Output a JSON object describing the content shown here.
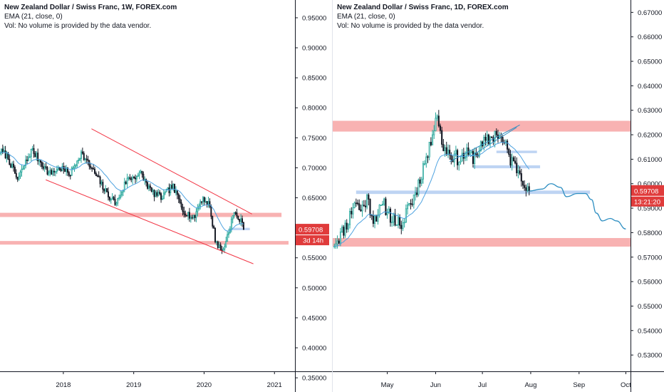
{
  "panels": {
    "left": {
      "title": "New Zealand Dollar / Swiss Franc, 1W, FOREX.com",
      "indicator": "EMA (21, close, 0)",
      "volume_note": "Vol: No volume is provided by the data vendor.",
      "price_badge": "0.59708",
      "countdown_badge": "3d 14h"
    },
    "right": {
      "title": "New Zealand Dollar / Swiss Franc, 1D, FOREX.com",
      "indicator": "EMA (21, close, 0)",
      "volume_note": "Vol: No volume is provided by the data vendor.",
      "price_badge": "0.59708",
      "countdown_badge": "13:21:20"
    }
  },
  "colors": {
    "up": "#26a69a",
    "down": "#131722",
    "ema": "#4fa3e0",
    "zone_red": "#f7a5a5",
    "zone_blue": "#b7cff2",
    "channel": "#f23645",
    "badge": "#e03b3b",
    "projection": "#2f8fc2"
  },
  "chart_data": [
    {
      "type": "candlestick",
      "title": "New Zealand Dollar / Swiss Franc, 1W, FOREX.com",
      "x_ticks": [
        "2018",
        "2019",
        "2020",
        "2021"
      ],
      "x_tick_values": [
        2018.0,
        2019.0,
        2020.0,
        2021.0
      ],
      "xlim": [
        2017.1,
        2021.2
      ],
      "y_ticks": [
        "0.95000",
        "0.90000",
        "0.85000",
        "0.80000",
        "0.75000",
        "0.70000",
        "0.65000",
        "0.60000",
        "0.55000",
        "0.50000",
        "0.45000",
        "0.40000",
        "0.35000"
      ],
      "ylim": [
        0.343,
        0.963
      ],
      "last_price": 0.59708,
      "ema_period": 21,
      "anchors": [
        [
          2017.1,
          0.728
        ],
        [
          2017.2,
          0.72
        ],
        [
          2017.35,
          0.68
        ],
        [
          2017.55,
          0.73
        ],
        [
          2017.8,
          0.69
        ],
        [
          2017.95,
          0.7
        ],
        [
          2018.1,
          0.69
        ],
        [
          2018.25,
          0.725
        ],
        [
          2018.45,
          0.69
        ],
        [
          2018.6,
          0.66
        ],
        [
          2018.75,
          0.64
        ],
        [
          2018.9,
          0.68
        ],
        [
          2019.1,
          0.69
        ],
        [
          2019.25,
          0.66
        ],
        [
          2019.4,
          0.65
        ],
        [
          2019.55,
          0.67
        ],
        [
          2019.7,
          0.63
        ],
        [
          2019.85,
          0.615
        ],
        [
          2019.97,
          0.65
        ],
        [
          2020.07,
          0.64
        ],
        [
          2020.16,
          0.58
        ],
        [
          2020.2,
          0.57
        ],
        [
          2020.26,
          0.56
        ],
        [
          2020.34,
          0.59
        ],
        [
          2020.42,
          0.625
        ],
        [
          2020.5,
          0.615
        ],
        [
          2020.58,
          0.597
        ]
      ],
      "zones": [
        {
          "color": "red",
          "x1": 2017.1,
          "x2": 2021.1,
          "y1": 0.625,
          "y2": 0.618
        },
        {
          "color": "red",
          "x1": 2017.1,
          "x2": 2021.2,
          "y1": 0.578,
          "y2": 0.572
        },
        {
          "color": "blue",
          "x1": 2020.35,
          "x2": 2020.65,
          "y1": 0.6,
          "y2": 0.596
        }
      ],
      "channel_lines": [
        {
          "x1": 2018.4,
          "y1": 0.765,
          "x2": 2020.68,
          "y2": 0.623
        },
        {
          "x1": 2017.75,
          "y1": 0.68,
          "x2": 2020.7,
          "y2": 0.54
        }
      ]
    },
    {
      "type": "candlestick",
      "title": "New Zealand Dollar / Swiss Franc, 1D, FOREX.com",
      "x_ticks": [
        "May",
        "Jun",
        "Jul",
        "Aug",
        "Sep",
        "Oct"
      ],
      "x_tick_values": [
        35,
        66,
        96,
        127,
        158,
        188
      ],
      "xlim": [
        0,
        191
      ],
      "y_ticks": [
        "0.67000",
        "0.66000",
        "0.65000",
        "0.64000",
        "0.63000",
        "0.62000",
        "0.61000",
        "0.60000",
        "0.59000",
        "0.58000",
        "0.57000",
        "0.56000",
        "0.55000",
        "0.54000",
        "0.53000"
      ],
      "ylim": [
        0.5213,
        0.6736
      ],
      "last_price": 0.59708,
      "ema_period": 21,
      "anchors": [
        [
          1,
          0.576
        ],
        [
          5,
          0.579
        ],
        [
          10,
          0.585
        ],
        [
          14,
          0.593
        ],
        [
          18,
          0.589
        ],
        [
          22,
          0.594
        ],
        [
          26,
          0.586
        ],
        [
          29,
          0.588
        ],
        [
          33,
          0.591
        ],
        [
          38,
          0.586
        ],
        [
          42,
          0.584
        ],
        [
          44,
          0.579
        ],
        [
          47,
          0.59
        ],
        [
          51,
          0.593
        ],
        [
          55,
          0.6
        ],
        [
          58,
          0.607
        ],
        [
          62,
          0.614
        ],
        [
          64,
          0.622
        ],
        [
          67,
          0.629
        ],
        [
          70,
          0.616
        ],
        [
          74,
          0.613
        ],
        [
          78,
          0.611
        ],
        [
          82,
          0.61
        ],
        [
          85,
          0.612
        ],
        [
          90,
          0.611
        ],
        [
          94,
          0.614
        ],
        [
          98,
          0.617
        ],
        [
          102,
          0.619
        ],
        [
          105,
          0.621
        ],
        [
          108,
          0.618
        ],
        [
          111,
          0.615
        ],
        [
          114,
          0.61
        ],
        [
          117,
          0.607
        ],
        [
          120,
          0.605
        ],
        [
          123,
          0.601
        ],
        [
          126,
          0.597
        ]
      ],
      "zones": [
        {
          "color": "red",
          "x1": 0,
          "x2": 191,
          "y1": 0.6257,
          "y2": 0.6213
        },
        {
          "color": "red",
          "x1": 0,
          "x2": 191,
          "y1": 0.5778,
          "y2": 0.5743
        },
        {
          "color": "blue",
          "x1": 15,
          "x2": 165,
          "y1": 0.5972,
          "y2": 0.5958
        },
        {
          "color": "blue",
          "x1": 90,
          "x2": 133,
          "y1": 0.6075,
          "y2": 0.6063
        },
        {
          "color": "blue",
          "x1": 105,
          "x2": 131,
          "y1": 0.6135,
          "y2": 0.6125
        }
      ],
      "pattern_lines": [
        {
          "x1": 75,
          "y1": 0.609,
          "x2": 120,
          "y2": 0.624
        },
        {
          "x1": 88,
          "y1": 0.611,
          "x2": 118,
          "y2": 0.623
        }
      ],
      "projection": [
        [
          126,
          0.597
        ],
        [
          134,
          0.5978
        ],
        [
          140,
          0.6
        ],
        [
          146,
          0.5985
        ],
        [
          150,
          0.5947
        ],
        [
          157,
          0.596
        ],
        [
          162,
          0.596
        ],
        [
          166,
          0.5935
        ],
        [
          169,
          0.588
        ],
        [
          173,
          0.5848
        ],
        [
          178,
          0.5858
        ],
        [
          182,
          0.5848
        ],
        [
          188,
          0.5815
        ]
      ]
    }
  ]
}
